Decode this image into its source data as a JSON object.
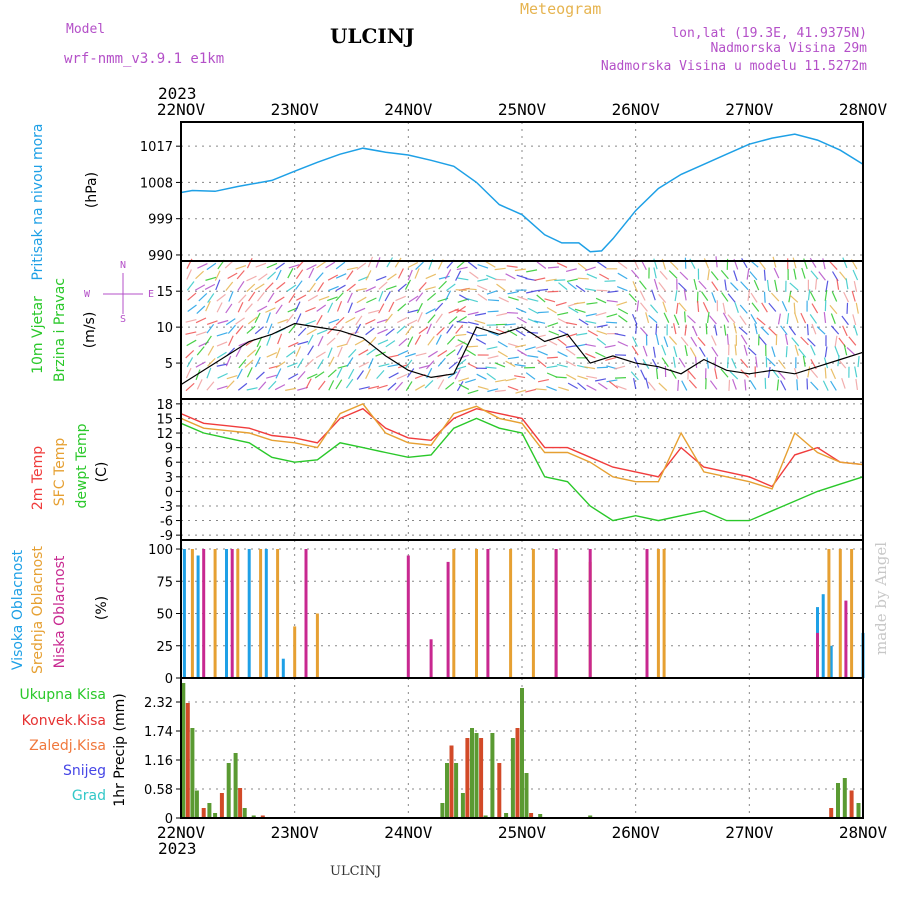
{
  "header": {
    "title": "ULCINJ",
    "meteogram": "Meteogram",
    "model_label": "Model",
    "model_name": "wrf-nmm_v3.9.1  e1km",
    "lonlat": "lon,lat (19.3E, 41.9375N)",
    "elevation": "Nadmorska Visina 29m",
    "model_elevation": "Nadmorska Visina u modelu 11.5272m",
    "year": "2023",
    "footer": "ULCINJ",
    "watermark": "made by Angel"
  },
  "dates": [
    "22NOV",
    "23NOV",
    "24NOV",
    "25NOV",
    "26NOV",
    "27NOV",
    "28NOV"
  ],
  "colors": {
    "pressure": "#1ea0e6",
    "temp2m": "#f03c3c",
    "sfc": "#e6a032",
    "dew": "#2ac82a",
    "precip": "#5a9a32",
    "conv": "#d24a28",
    "high": "#1ea0e6",
    "mid": "#e6a032",
    "low": "#c82890",
    "wind": "#000000"
  },
  "chart_data": [
    {
      "type": "line",
      "name": "pressure",
      "ylabels": [
        "Pritisak na nivou mora",
        "(hPa)"
      ],
      "yticks": [
        990,
        999,
        1008,
        1017
      ],
      "ylim": [
        988.5,
        1023
      ],
      "x_days": [
        0,
        0.1,
        0.3,
        0.5,
        0.8,
        1.0,
        1.2,
        1.4,
        1.6,
        1.8,
        2.0,
        2.2,
        2.4,
        2.6,
        2.8,
        3.0,
        3.2,
        3.35,
        3.5,
        3.6,
        3.7,
        3.8,
        4.0,
        4.2,
        4.4,
        4.6,
        4.8,
        5.0,
        5.2,
        5.4,
        5.6,
        5.8,
        6.0
      ],
      "values": [
        1005.5,
        1006,
        1005.8,
        1007,
        1008.5,
        1010.8,
        1013,
        1015,
        1016.5,
        1015.5,
        1014.8,
        1013.5,
        1012,
        1008,
        1002.5,
        1000,
        995,
        993,
        993,
        990.8,
        991,
        994,
        1001,
        1006.5,
        1010,
        1012.5,
        1015,
        1017.5,
        1019,
        1020,
        1018.5,
        1016,
        1012.5
      ]
    },
    {
      "type": "line",
      "name": "wind",
      "ylabels": [
        "10m Vjetar",
        "Brzina i Pravac",
        "(m/s)"
      ],
      "compass": [
        "N",
        "S",
        "W",
        "E"
      ],
      "yticks": [
        5,
        10,
        15
      ],
      "ylim": [
        0,
        19.2
      ],
      "x_days": [
        0,
        0.2,
        0.4,
        0.6,
        0.8,
        1.0,
        1.2,
        1.4,
        1.6,
        1.8,
        2.0,
        2.2,
        2.4,
        2.6,
        2.8,
        3.0,
        3.2,
        3.4,
        3.6,
        3.8,
        4.0,
        4.2,
        4.4,
        4.6,
        4.8,
        5.0,
        5.2,
        5.4,
        5.6,
        5.8,
        6.0
      ],
      "values": [
        2,
        4,
        6,
        8,
        9,
        10.5,
        10,
        9.5,
        8.5,
        6,
        4,
        3,
        3.5,
        10,
        9,
        10,
        8,
        9,
        5,
        6,
        5,
        4.5,
        3.5,
        5.5,
        4,
        3.5,
        4,
        3.5,
        4.5,
        5.5,
        6.5
      ]
    },
    {
      "type": "line",
      "name": "temperature",
      "ylabels": [
        "2m Temp",
        "SFC Temp",
        "dewpt Temp",
        "(C)"
      ],
      "yticks": [
        -9,
        -6,
        -3,
        0,
        3,
        6,
        9,
        12,
        15,
        18
      ],
      "ylim": [
        -10,
        19
      ],
      "x_days": [
        0,
        0.2,
        0.4,
        0.6,
        0.8,
        1.0,
        1.2,
        1.4,
        1.6,
        1.8,
        2.0,
        2.2,
        2.4,
        2.6,
        2.8,
        3.0,
        3.2,
        3.4,
        3.6,
        3.8,
        4.0,
        4.2,
        4.4,
        4.6,
        4.8,
        5.0,
        5.2,
        5.4,
        5.6,
        5.8,
        6.0
      ],
      "series": [
        {
          "name": "2m Temp",
          "values": [
            16,
            14,
            13.5,
            13,
            11.5,
            11,
            10,
            15,
            17,
            13,
            11,
            10.5,
            15,
            17,
            16,
            15,
            9,
            9,
            7,
            5,
            4,
            3,
            9,
            5,
            4,
            3,
            1,
            7.5,
            9,
            6,
            5.5
          ]
        },
        {
          "name": "SFC Temp",
          "values": [
            15,
            13,
            12.5,
            12,
            10.5,
            10,
            9,
            16,
            18,
            12,
            10,
            9.5,
            16,
            17.5,
            15,
            14,
            8,
            8,
            6,
            3,
            2,
            2,
            12,
            4,
            3,
            2,
            0.5,
            12,
            8,
            6,
            5.5
          ]
        },
        {
          "name": "dewpt Temp",
          "values": [
            14,
            12,
            11,
            10,
            7,
            6,
            6.5,
            10,
            9,
            8,
            7,
            7.5,
            13,
            15,
            13,
            12,
            3,
            2,
            -3,
            -6,
            -5,
            -6,
            -5,
            -4,
            -6,
            -6,
            -4,
            -2,
            0,
            1.5,
            3
          ]
        }
      ]
    },
    {
      "type": "bar",
      "name": "cloud",
      "ylabels": [
        "Visoka Oblacnost",
        "Srednja Oblacnost",
        "Niska Oblacnost",
        "(%)"
      ],
      "yticks": [
        0,
        25,
        50,
        75,
        100
      ],
      "ylim": [
        0,
        107
      ],
      "series": [
        {
          "name": "Visoka Oblacnost",
          "x_days": [
            0.03,
            0.15,
            0.4,
            0.6,
            0.75,
            0.9,
            5.6,
            5.65,
            5.72,
            6.0
          ],
          "values": [
            100,
            95,
            100,
            100,
            100,
            15,
            55,
            65,
            25,
            35
          ]
        },
        {
          "name": "Srednja Oblacnost",
          "x_days": [
            0.1,
            0.3,
            0.5,
            0.7,
            0.85,
            1.0,
            1.1,
            1.2,
            2.4,
            2.6,
            2.9,
            3.1,
            3.3,
            3.6,
            4.2,
            4.25,
            5.7,
            5.8,
            5.9
          ],
          "values": [
            100,
            100,
            100,
            100,
            100,
            40,
            50,
            50,
            100,
            100,
            100,
            100,
            100,
            90,
            100,
            100,
            100,
            100,
            100
          ]
        },
        {
          "name": "Niska Oblacnost",
          "x_days": [
            0.2,
            0.45,
            1.1,
            2.0,
            2.2,
            2.35,
            2.7,
            3.3,
            3.6,
            4.1,
            5.6,
            5.85
          ],
          "values": [
            100,
            100,
            100,
            95,
            30,
            90,
            100,
            100,
            100,
            100,
            35,
            60
          ]
        }
      ]
    },
    {
      "type": "bar",
      "name": "precip",
      "ylabels": [
        "1hr Precip (mm)"
      ],
      "legend": [
        "Ukupna Kisa",
        "Konvek.Kisa",
        "Zaledj.Kisa",
        "Snijeg",
        "Grad"
      ],
      "legend_colors": [
        "#2ac82a",
        "#e63232",
        "#f0783c",
        "#4646e6",
        "#32c8c8"
      ],
      "yticks": [
        0,
        0.58,
        1.16,
        1.74,
        2.32
      ],
      "ylim": [
        0,
        2.8
      ],
      "x_days": [
        0.02,
        0.06,
        0.1,
        0.14,
        0.2,
        0.25,
        0.3,
        0.36,
        0.42,
        0.48,
        0.52,
        0.56,
        0.64,
        0.72,
        2.3,
        2.34,
        2.38,
        2.42,
        2.48,
        2.52,
        2.56,
        2.6,
        2.64,
        2.68,
        2.74,
        2.8,
        2.86,
        2.92,
        2.96,
        3.0,
        3.04,
        3.08,
        3.16,
        3.6,
        5.72,
        5.78,
        5.84,
        5.9,
        5.96
      ],
      "values": [
        2.7,
        2.3,
        1.8,
        0.55,
        0.2,
        0.3,
        0.1,
        0.5,
        1.1,
        1.3,
        0.6,
        0.2,
        0.05,
        0.05,
        0.3,
        1.1,
        1.45,
        1.1,
        0.5,
        1.6,
        1.8,
        1.7,
        1.6,
        0.05,
        1.7,
        1.1,
        0.1,
        1.6,
        1.8,
        2.6,
        0.9,
        0.1,
        0.08,
        0.05,
        0.2,
        0.7,
        0.8,
        0.55,
        0.3
      ]
    }
  ]
}
